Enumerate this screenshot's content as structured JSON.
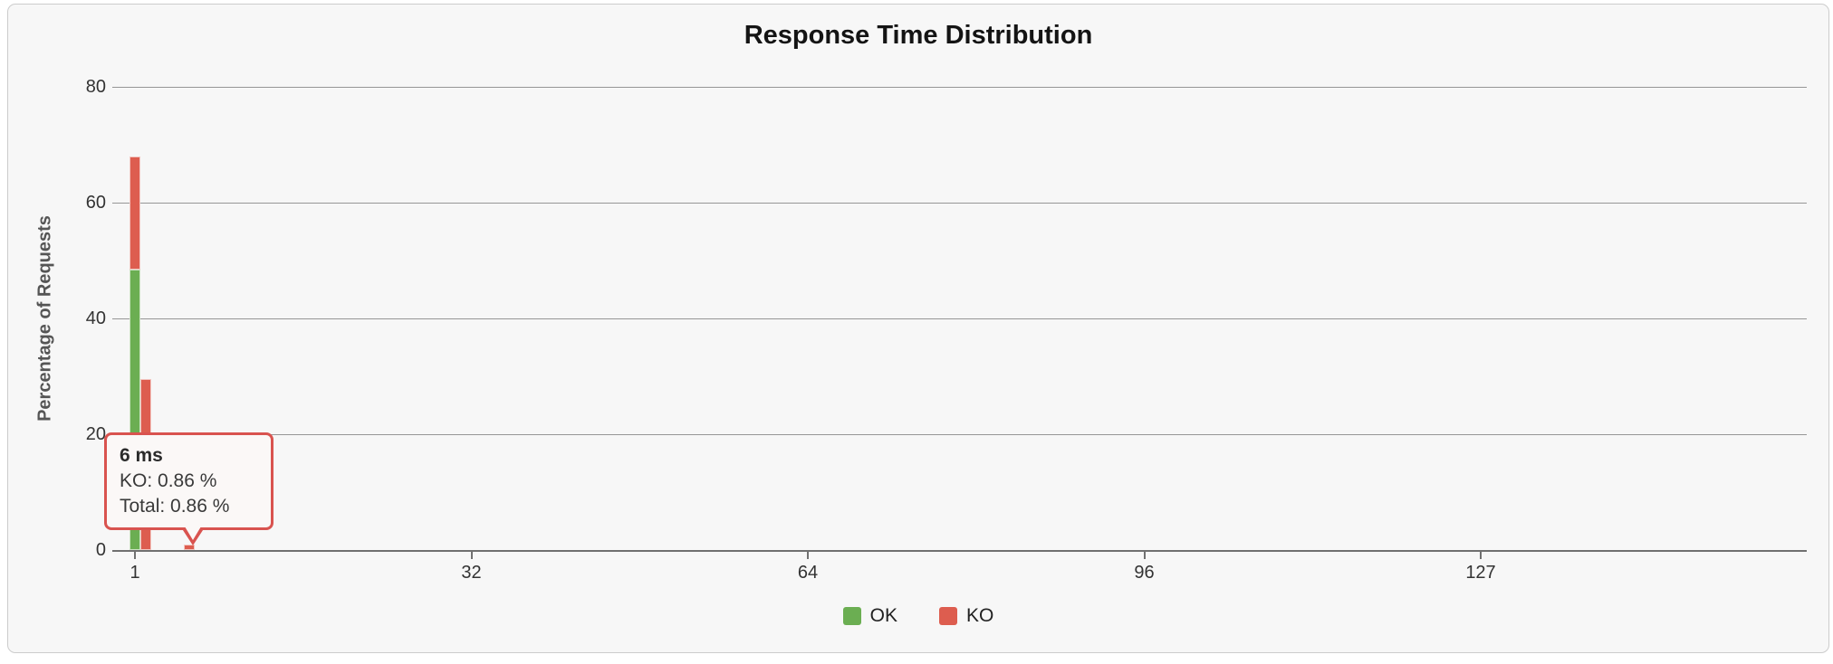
{
  "window": {
    "title": "Response Time Distribution"
  },
  "chart_data": {
    "type": "bar",
    "stacked": true,
    "title": "Response Time Distribution",
    "xlabel": "",
    "ylabel": "Percentage of Requests",
    "ylim": [
      0,
      80
    ],
    "y_ticks": [
      0,
      20,
      40,
      60,
      80
    ],
    "x_ticks": [
      "1",
      "32",
      "64",
      "96",
      "127"
    ],
    "grid": "horizontal",
    "legend_position": "bottom-center",
    "series": [
      {
        "name": "OK",
        "color": "#6bae52",
        "points": [
          {
            "x": 1,
            "pct": 48.4
          }
        ]
      },
      {
        "name": "KO",
        "color": "#dd5d4f",
        "points": [
          {
            "x": 1,
            "pct": 19.6
          },
          {
            "x": 2,
            "pct": 29.6
          },
          {
            "x": 6,
            "pct": 0.86
          }
        ]
      }
    ],
    "tooltip": {
      "header": "6 ms",
      "line1": "KO: 0.86 %",
      "line2": "Total: 0.86 %"
    },
    "legend": [
      {
        "label": "OK",
        "color": "#6bae52"
      },
      {
        "label": "KO",
        "color": "#dd5d4f"
      }
    ]
  },
  "colors": {
    "panel_bg": "#f7f7f7",
    "panel_border": "#cccccc",
    "grid": "#969696",
    "axis": "#707070",
    "ok": "#6bae52",
    "ko": "#dd5d4f",
    "tooltip_border": "#d9534f",
    "tooltip_bg": "#fbf8f7"
  }
}
